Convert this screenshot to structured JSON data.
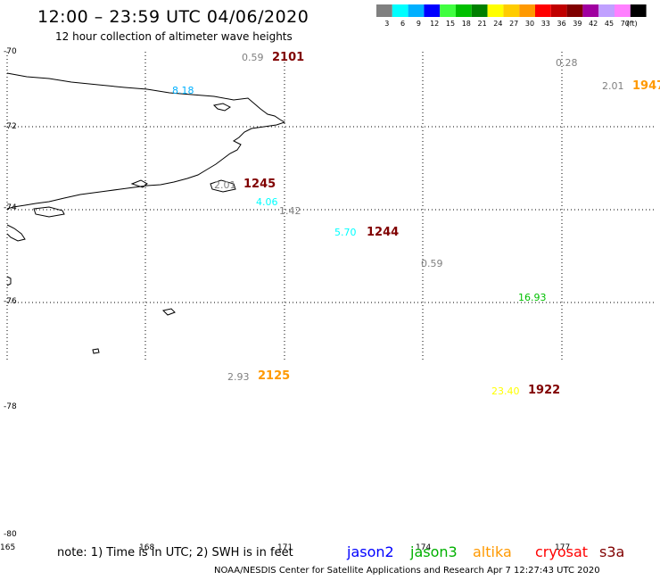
{
  "header": {
    "title": "12:00 – 23:59 UTC 04/06/2020",
    "subtitle": "12 hour collection of altimeter wave heights"
  },
  "legend": {
    "bins": [
      {
        "label": "3",
        "color": "#808080"
      },
      {
        "label": "6",
        "color": "#00ffff"
      },
      {
        "label": "9",
        "color": "#00b0ff"
      },
      {
        "label": "12",
        "color": "#0000ff"
      },
      {
        "label": "15",
        "color": "#40ff40"
      },
      {
        "label": "18",
        "color": "#00c000"
      },
      {
        "label": "21",
        "color": "#008000"
      },
      {
        "label": "24",
        "color": "#ffff00"
      },
      {
        "label": "27",
        "color": "#ffcc00"
      },
      {
        "label": "30",
        "color": "#ff9900"
      },
      {
        "label": "33",
        "color": "#ff0000"
      },
      {
        "label": "36",
        "color": "#c00000"
      },
      {
        "label": "39",
        "color": "#800000"
      },
      {
        "label": "42",
        "color": "#a000a0"
      },
      {
        "label": "45",
        "color": "#c0a0ff"
      },
      {
        "label": "70",
        "color": "#ff80ff"
      },
      {
        "label": "",
        "color": "#000000"
      }
    ],
    "unit": "(ft)"
  },
  "map": {
    "latitudes": [
      "-70",
      "-72",
      "-74",
      "-76",
      "-78",
      "-80"
    ],
    "longitudes": [
      "165",
      "168",
      "171",
      "174",
      "177"
    ],
    "observations": [
      {
        "swh": "0.59",
        "swh_color": "#808080",
        "time": "2101",
        "time_color": "#800000"
      },
      {
        "swh": "0.28",
        "swh_color": "#808080",
        "time": "",
        "time_color": "#800000"
      },
      {
        "swh": "2.01",
        "swh_color": "#808080",
        "time": "1947",
        "time_color": "#ff9900"
      },
      {
        "swh": "8.18",
        "swh_color": "#00b0ff",
        "time": "",
        "time_color": "#800000"
      },
      {
        "swh": "2.01",
        "swh_color": "#808080",
        "time": "1245",
        "time_color": "#800000"
      },
      {
        "swh": "4.06",
        "swh_color": "#00ffff",
        "time": "",
        "time_color": "#800000"
      },
      {
        "swh": "1.42",
        "swh_color": "#808080",
        "time": "",
        "time_color": "#800000"
      },
      {
        "swh": "5.70",
        "swh_color": "#00ffff",
        "time": "1244",
        "time_color": "#800000"
      },
      {
        "swh": "0.59",
        "swh_color": "#808080",
        "time": "",
        "time_color": "#800000"
      },
      {
        "swh": "16.93",
        "swh_color": "#00c000",
        "time": "",
        "time_color": "#800000"
      },
      {
        "swh": "2.93",
        "swh_color": "#808080",
        "time": "2125",
        "time_color": "#ff9900"
      },
      {
        "swh": "23.40",
        "swh_color": "#ffff00",
        "time": "1922",
        "time_color": "#800000"
      }
    ]
  },
  "footer": {
    "note": "note:  1) Time is in UTC;  2) SWH is in feet",
    "satellites": [
      {
        "name": "jason2",
        "color": "#0000ff"
      },
      {
        "name": "jason3",
        "color": "#00b000"
      },
      {
        "name": "altika",
        "color": "#ff9900"
      },
      {
        "name": "cryosat",
        "color": "#ff0000"
      },
      {
        "name": "s3a",
        "color": "#800000"
      }
    ],
    "credit": "NOAA/NESDIS Center for Satellite Applications and Research    Apr  7 12:27:43 UTC 2020"
  }
}
